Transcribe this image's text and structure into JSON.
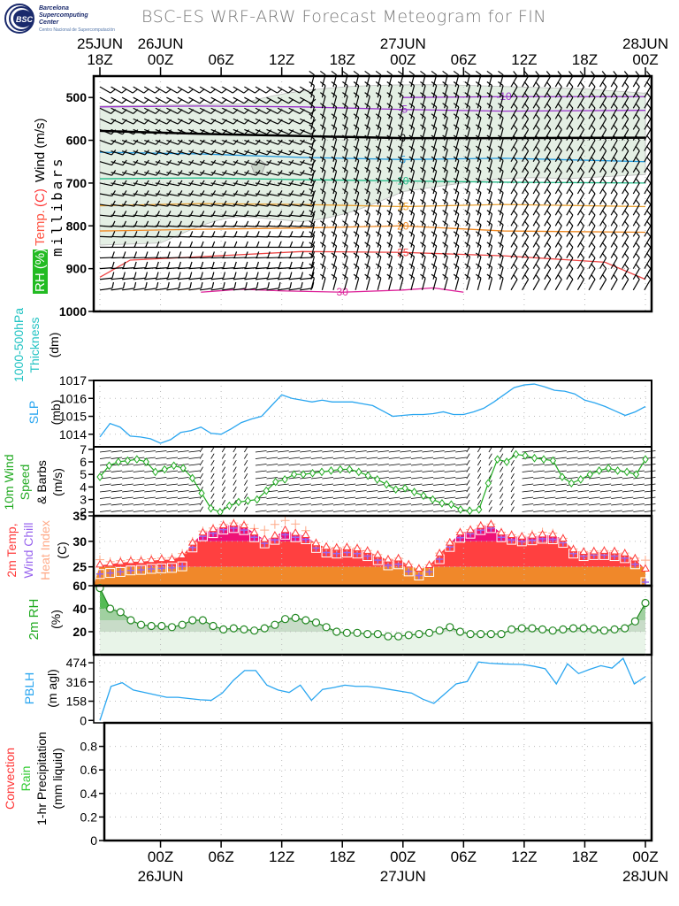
{
  "header": {
    "title": "BSC-ES WRF-ARW Forecast Meteogram for FIN",
    "logo": {
      "abbr": "BSC",
      "line1": "Barcelona",
      "line2": "Supercomputing",
      "line3": "Center",
      "line4": "Centro Nacional de Supercomputación"
    }
  },
  "colors": {
    "slp": "#2aa6f0",
    "pblh": "#2aa6f0",
    "thickness": "#22c3c3",
    "wind10": "#22aa22",
    "rh": "#22aa22",
    "temp": "#ff3a3a",
    "windchill": "#9966ee",
    "heatindex": "#ffaa88",
    "convection": "#ff3333",
    "rain": "#33cc33"
  },
  "chart_data": [
    {
      "id": "time_axis",
      "type": "table",
      "top_ticks": [
        {
          "hour": "18Z",
          "date": "25JUN"
        },
        {
          "hour": "00Z",
          "date": "26JUN"
        },
        {
          "hour": "06Z",
          "date": ""
        },
        {
          "hour": "12Z",
          "date": ""
        },
        {
          "hour": "18Z",
          "date": ""
        },
        {
          "hour": "00Z",
          "date": "27JUN"
        },
        {
          "hour": "06Z",
          "date": ""
        },
        {
          "hour": "12Z",
          "date": ""
        },
        {
          "hour": "18Z",
          "date": ""
        },
        {
          "hour": "00Z",
          "date": "28JUN"
        }
      ],
      "bottom_ticks": [
        {
          "hour": "00Z",
          "date": "26JUN"
        },
        {
          "hour": "06Z",
          "date": ""
        },
        {
          "hour": "12Z",
          "date": ""
        },
        {
          "hour": "18Z",
          "date": ""
        },
        {
          "hour": "00Z",
          "date": "27JUN"
        },
        {
          "hour": "06Z",
          "date": ""
        },
        {
          "hour": "12Z",
          "date": ""
        },
        {
          "hour": "18Z",
          "date": ""
        },
        {
          "hour": "00Z",
          "date": "28JUN"
        }
      ],
      "hours_range": [
        0,
        54
      ]
    },
    {
      "id": "upper_air",
      "type": "heatmap",
      "ylabel_parts": [
        {
          "text": "RH (%)",
          "color": "#ffffff",
          "bg": "#22bb22"
        },
        {
          "text": "Temp.",
          "color": "#ff5544"
        },
        {
          "text": "(C)",
          "color": "#ff3333"
        },
        {
          "text": "Wind (m/s)",
          "color": "#000000"
        }
      ],
      "ylabel2": "millibars",
      "yticks": [
        500,
        600,
        700,
        800,
        900,
        1000
      ],
      "ylim": [
        1000,
        450
      ],
      "rh_contour_labels": [
        "30",
        "30",
        "30",
        "30"
      ],
      "temperature_isotherms": [
        {
          "value": -5,
          "color": "#9933cc",
          "p": [
            [
              0,
              522
            ],
            [
              10,
              520
            ],
            [
              20,
              522
            ],
            [
              30,
              528
            ],
            [
              40,
              532
            ],
            [
              54,
              530
            ]
          ]
        },
        {
          "value": -10,
          "color": "#9933cc",
          "p": [
            [
              30,
              500
            ],
            [
              40,
              498
            ],
            [
              54,
              498
            ]
          ]
        },
        {
          "value": 0,
          "color": "#000000",
          "p": [
            [
              0,
              578
            ],
            [
              10,
              585
            ],
            [
              20,
              590
            ],
            [
              30,
              595
            ],
            [
              40,
              595
            ],
            [
              54,
              594
            ]
          ]
        },
        {
          "value": 5,
          "color": "#2299dd",
          "p": [
            [
              0,
              628
            ],
            [
              10,
              632
            ],
            [
              20,
              640
            ],
            [
              30,
              645
            ],
            [
              40,
              642
            ],
            [
              54,
              650
            ]
          ]
        },
        {
          "value": 10,
          "color": "#22bb88",
          "p": [
            [
              0,
              690
            ],
            [
              10,
              688
            ],
            [
              20,
              692
            ],
            [
              30,
              695
            ],
            [
              40,
              698
            ],
            [
              54,
              700
            ]
          ]
        },
        {
          "value": 15,
          "color": "#e8a030",
          "p": [
            [
              0,
              753
            ],
            [
              10,
              748
            ],
            [
              20,
              750
            ],
            [
              30,
              755
            ],
            [
              40,
              750
            ],
            [
              54,
              755
            ]
          ]
        },
        {
          "value": 20,
          "color": "#ee8822",
          "p": [
            [
              0,
              812
            ],
            [
              10,
              808
            ],
            [
              20,
              805
            ],
            [
              30,
              800
            ],
            [
              40,
              812
            ],
            [
              54,
              815
            ]
          ]
        },
        {
          "value": 25,
          "color": "#ee4444",
          "p": [
            [
              0,
              920
            ],
            [
              3,
              880
            ],
            [
              10,
              872
            ],
            [
              20,
              860
            ],
            [
              30,
              862
            ],
            [
              40,
              870
            ],
            [
              50,
              885
            ],
            [
              54,
              925
            ]
          ]
        },
        {
          "value": 30,
          "color": "#dd2299",
          "p": [
            [
              10,
              955
            ],
            [
              14,
              948
            ],
            [
              18,
              952
            ],
            [
              24,
              955
            ],
            [
              30,
              950
            ],
            [
              33,
              945
            ],
            [
              36,
              955
            ]
          ]
        }
      ],
      "wind_levels_hpa": [
        475,
        500,
        525,
        550,
        575,
        600,
        625,
        650,
        675,
        700,
        725,
        750,
        775,
        800,
        825,
        850,
        875,
        900,
        925,
        950
      ]
    },
    {
      "id": "thickness",
      "type": "line",
      "ylabel": [
        "1000-500hPa",
        "Thickness",
        "(dm)"
      ],
      "values": []
    },
    {
      "id": "slp",
      "type": "line",
      "ylabel": [
        "SLP",
        "(mb)"
      ],
      "yticks": [
        1014,
        1015,
        1016,
        1017
      ],
      "ylim": [
        1013.3,
        1017
      ],
      "x_hours": [
        0,
        1,
        2,
        3,
        4,
        5,
        6,
        7,
        8,
        9,
        10,
        11,
        12,
        13,
        14,
        15,
        16,
        17,
        18,
        19,
        20,
        21,
        22,
        23,
        24,
        25,
        26,
        27,
        28,
        29,
        30,
        31,
        32,
        33,
        34,
        35,
        36,
        37,
        38,
        39,
        40,
        41,
        42,
        43,
        44,
        45,
        46,
        47,
        48,
        49,
        50,
        51,
        52,
        53,
        54
      ],
      "values": [
        1013.85,
        1014.6,
        1014.4,
        1013.9,
        1013.85,
        1013.75,
        1013.5,
        1013.7,
        1014.1,
        1014.2,
        1014.4,
        1014.05,
        1014.0,
        1014.3,
        1014.65,
        1014.85,
        1015.0,
        1015.6,
        1016.2,
        1016.0,
        1015.9,
        1015.8,
        1015.9,
        1015.8,
        1015.8,
        1015.8,
        1015.7,
        1015.6,
        1015.3,
        1015.0,
        1015.05,
        1015.1,
        1015.1,
        1015.15,
        1015.25,
        1015.1,
        1015.1,
        1015.25,
        1015.45,
        1015.8,
        1016.2,
        1016.6,
        1016.75,
        1016.8,
        1016.65,
        1016.45,
        1016.4,
        1016.25,
        1015.9,
        1015.75,
        1015.55,
        1015.3,
        1015.05,
        1015.25,
        1015.55
      ]
    },
    {
      "id": "wind10",
      "type": "line",
      "ylabel": [
        "10m Wind",
        "Speed",
        "& Barbs",
        "(m/s)"
      ],
      "yticks": [
        2,
        3,
        4,
        5,
        6,
        7
      ],
      "ylim": [
        1.7,
        7.2
      ],
      "values": [
        4.8,
        5.7,
        6.0,
        6.1,
        6.2,
        6.0,
        5.2,
        5.4,
        5.7,
        5.5,
        4.7,
        3.5,
        2.3,
        2.0,
        2.5,
        2.8,
        2.9,
        3.0,
        3.7,
        4.4,
        4.6,
        5.0,
        5.0,
        5.1,
        5.2,
        5.3,
        5.4,
        5.4,
        5.2,
        4.9,
        4.6,
        4.2,
        3.8,
        3.9,
        3.6,
        3.3,
        3.0,
        2.7,
        2.6,
        2.2,
        2.1,
        2.2,
        4.3,
        6.2,
        6.0,
        6.6,
        6.5,
        6.3,
        6.2,
        6.1,
        4.8,
        4.3,
        4.6,
        5.0,
        5.3,
        5.5,
        5.3,
        5.2,
        5.0,
        6.2
      ]
    },
    {
      "id": "temp2m",
      "type": "area",
      "ylabel_parts": [
        {
          "text": "2m Temp,",
          "color": "#ff3a3a"
        },
        {
          "text": "Wind Chill",
          "color": "#9966ee"
        },
        {
          "text": "Heat Index",
          "color": "#ffaa88"
        },
        {
          "text": "(C)",
          "color": "#000000"
        }
      ],
      "yticks": [
        25,
        30,
        35
      ],
      "ylim": [
        21.3,
        35
      ],
      "values": [
        25.3,
        25.5,
        25.8,
        26.0,
        26.0,
        26.2,
        26.4,
        26.4,
        27.1,
        29.6,
        31.6,
        32.3,
        33.0,
        33.3,
        33.0,
        31.6,
        30.3,
        31.0,
        32.1,
        31.5,
        31.1,
        29.5,
        28.8,
        28.6,
        28.7,
        28.5,
        28.0,
        27.2,
        26.3,
        26.5,
        25.3,
        24.5,
        25.2,
        27.5,
        29.6,
        31.6,
        32.1,
        32.9,
        33.2,
        31.6,
        31.1,
        30.8,
        31.0,
        31.2,
        31.2,
        30.4,
        28.3,
        27.8,
        27.9,
        28.0,
        27.9,
        27.5,
        26.5,
        24.5
      ],
      "wind_chill": [
        23.6,
        23.8,
        24.0,
        24.3,
        24.4,
        24.6,
        24.7,
        24.8,
        25.1,
        28.8,
        31.0,
        31.6,
        32.3,
        32.6,
        32.2,
        30.8,
        29.6,
        30.3,
        31.3,
        30.8,
        30.4,
        28.7,
        27.8,
        27.6,
        27.8,
        27.6,
        27.1,
        26.3,
        25.3,
        25.5,
        24.1,
        23.3,
        24.0,
        26.5,
        28.9,
        30.7,
        31.5,
        32.2,
        32.6,
        30.8,
        30.3,
        30.0,
        30.2,
        30.5,
        30.4,
        29.7,
        27.6,
        27.1,
        27.3,
        27.3,
        27.1,
        26.7,
        25.5,
        22.0
      ],
      "heat_index": [
        26.4,
        26.0,
        26.2,
        26.4,
        26.4,
        26.6,
        26.7,
        26.8,
        27.6,
        30.0,
        32.0,
        32.6,
        33.3,
        33.6,
        33.3,
        32.5,
        32.2,
        33.3,
        34.1,
        33.4,
        32.1,
        29.7,
        28.9,
        28.8,
        28.9,
        28.7,
        28.2,
        27.4,
        26.5,
        26.7,
        25.5,
        24.7,
        25.4,
        27.7,
        29.8,
        31.8,
        32.3,
        33.1,
        33.4,
        31.8,
        31.3,
        31.0,
        31.4,
        31.8,
        31.6,
        30.6,
        28.5,
        28.0,
        28.1,
        28.2,
        28.1,
        27.7,
        26.7,
        26.3
      ],
      "bands": [
        {
          "upper": 25,
          "color": "#f0882a"
        },
        {
          "upper": 30,
          "color": "#ff4040"
        },
        {
          "upper": 35,
          "color": "#ee1177"
        }
      ]
    },
    {
      "id": "rh2m",
      "type": "area",
      "ylabel": [
        "2m RH",
        "(%)"
      ],
      "yticks": [
        20,
        40,
        60
      ],
      "ylim": [
        0,
        60
      ],
      "values": [
        58,
        40,
        37,
        30,
        26,
        25,
        25,
        24,
        26,
        30,
        30,
        25,
        22,
        23,
        22,
        21,
        23,
        26,
        31,
        32,
        30,
        28,
        24,
        20,
        19,
        19,
        18,
        18,
        16,
        16,
        17,
        18,
        19,
        21,
        24,
        20,
        18,
        18,
        18,
        18,
        22,
        23,
        23,
        22,
        21,
        22,
        23,
        23,
        22,
        21,
        22,
        23,
        29,
        45
      ],
      "bands": [
        {
          "upper": 20,
          "color": "#e8f4e8"
        },
        {
          "upper": 30,
          "color": "#c8dcc8"
        },
        {
          "upper": 40,
          "color": "#a0d0a0"
        },
        {
          "upper": 60,
          "color": "#55bb55"
        }
      ]
    },
    {
      "id": "pblh",
      "type": "line",
      "ylabel": [
        "PBLH",
        "(m agl)"
      ],
      "yticks": [
        0,
        158,
        316,
        474
      ],
      "ylim": [
        -20,
        540
      ],
      "values": [
        0,
        280,
        310,
        250,
        230,
        210,
        190,
        190,
        180,
        170,
        165,
        225,
        330,
        410,
        410,
        290,
        250,
        230,
        290,
        165,
        255,
        270,
        290,
        280,
        280,
        270,
        255,
        240,
        225,
        175,
        140,
        220,
        300,
        320,
        480,
        470,
        465,
        462,
        460,
        445,
        425,
        300,
        465,
        385,
        420,
        450,
        430,
        510,
        300,
        360
      ],
      "x_hours_step": 1.1
    },
    {
      "id": "precip",
      "type": "bar",
      "ylabel_parts": [
        {
          "text": "Convection",
          "color": "#ff3333"
        },
        {
          "text": "Rain",
          "color": "#33cc33"
        },
        {
          "text": "1-hr Precipitation",
          "color": "#000000"
        },
        {
          "text": "(mm liquid)",
          "color": "#000000"
        }
      ],
      "yticks": [
        "0",
        "0.2",
        "0.4",
        "0.6",
        "0.8"
      ],
      "ylim": [
        0,
        1
      ],
      "convection": [],
      "rain": []
    }
  ]
}
